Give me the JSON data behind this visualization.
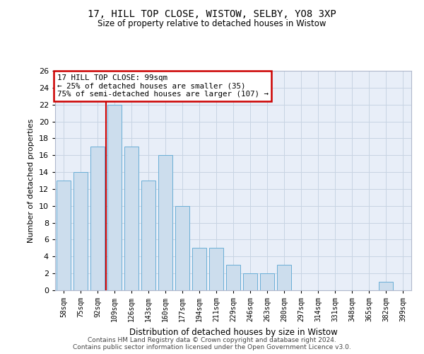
{
  "title1": "17, HILL TOP CLOSE, WISTOW, SELBY, YO8 3XP",
  "title2": "Size of property relative to detached houses in Wistow",
  "xlabel": "Distribution of detached houses by size in Wistow",
  "ylabel": "Number of detached properties",
  "categories": [
    "58sqm",
    "75sqm",
    "92sqm",
    "109sqm",
    "126sqm",
    "143sqm",
    "160sqm",
    "177sqm",
    "194sqm",
    "211sqm",
    "229sqm",
    "246sqm",
    "263sqm",
    "280sqm",
    "297sqm",
    "314sqm",
    "331sqm",
    "348sqm",
    "365sqm",
    "382sqm",
    "399sqm"
  ],
  "values": [
    13,
    14,
    17,
    22,
    17,
    13,
    16,
    10,
    5,
    5,
    3,
    2,
    2,
    3,
    0,
    0,
    0,
    0,
    0,
    1,
    0
  ],
  "bar_color": "#ccdded",
  "bar_edge_color": "#6aaed6",
  "grid_color": "#c8d4e3",
  "background_color": "#e8eef8",
  "annotation_box_color": "#ffffff",
  "annotation_box_edge": "#cc0000",
  "annotation_line1": "17 HILL TOP CLOSE: 99sqm",
  "annotation_line2": "← 25% of detached houses are smaller (35)",
  "annotation_line3": "75% of semi-detached houses are larger (107) →",
  "vline_color": "#cc0000",
  "vline_x": 2.5,
  "ylim": [
    0,
    26
  ],
  "yticks": [
    0,
    2,
    4,
    6,
    8,
    10,
    12,
    14,
    16,
    18,
    20,
    22,
    24,
    26
  ],
  "footer1": "Contains HM Land Registry data © Crown copyright and database right 2024.",
  "footer2": "Contains public sector information licensed under the Open Government Licence v3.0."
}
